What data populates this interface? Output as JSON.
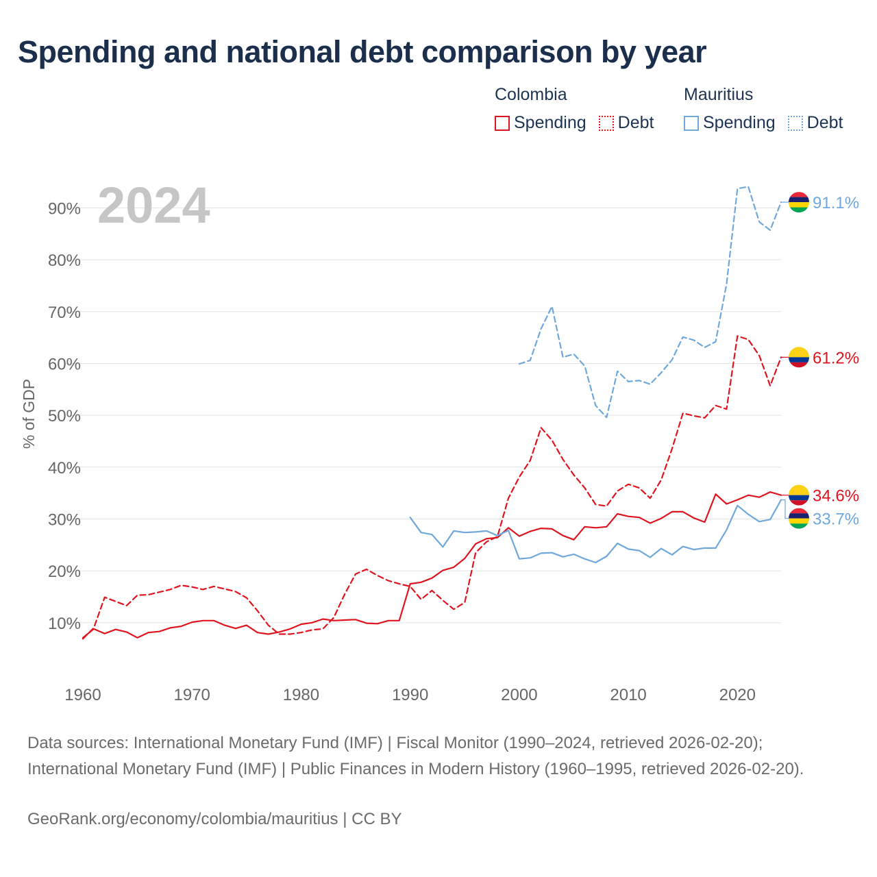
{
  "title": "Spending and national debt comparison by year",
  "legend": {
    "groups": [
      {
        "country": "Colombia",
        "spending_label": "Spending",
        "debt_label": "Debt",
        "color": "#e0141e"
      },
      {
        "country": "Mauritius",
        "spending_label": "Spending",
        "debt_label": "Debt",
        "color": "#6fa8dc"
      }
    ]
  },
  "source_text": "Data sources: International Monetary Fund (IMF) | Fiscal Monitor (1990–2024, retrieved 2026-02-20); International Monetary Fund (IMF) | Public Finances in Modern History (1960–1995, retrieved 2026-02-20).",
  "credit_text": "GeoRank.org/economy/colombia/mauritius | CC BY",
  "chart_data": {
    "type": "line",
    "year_label": "2024",
    "ylabel": "% of GDP",
    "xlim": [
      1960,
      2024
    ],
    "ylim": [
      0,
      95
    ],
    "x_ticks": [
      1960,
      1970,
      1980,
      1990,
      2000,
      2010,
      2020
    ],
    "y_ticks": [
      10,
      20,
      30,
      40,
      50,
      60,
      70,
      80,
      90
    ],
    "y_tick_suffix": "%",
    "series": [
      {
        "name": "Colombia Spending",
        "country": "Colombia",
        "kind": "Spending",
        "color": "#e0141e",
        "dashed": false,
        "end_label": "34.6%",
        "flag": "colombia-flag",
        "start_year": 1960,
        "values": [
          7.1,
          8.8,
          7.9,
          8.7,
          8.2,
          7.1,
          8.1,
          8.3,
          9.0,
          9.3,
          10.1,
          10.4,
          10.4,
          9.5,
          8.9,
          9.5,
          8.1,
          7.8,
          8.2,
          8.8,
          9.7,
          10.0,
          10.7,
          10.4,
          10.5,
          10.6,
          9.9,
          9.8,
          10.4,
          10.4,
          17.5,
          17.8,
          18.6,
          20.1,
          20.7,
          22.4,
          25.2,
          26.2,
          26.4,
          28.3,
          26.7,
          27.6,
          28.2,
          28.1,
          26.8,
          26.0,
          28.5,
          28.3,
          28.5,
          31.0,
          30.5,
          30.3,
          29.2,
          30.1,
          31.4,
          31.4,
          30.2,
          29.4,
          34.8,
          32.9,
          33.7,
          34.6,
          34.2,
          35.2,
          34.6
        ]
      },
      {
        "name": "Colombia Debt",
        "country": "Colombia",
        "kind": "Debt",
        "color": "#e0141e",
        "dashed": true,
        "end_label": "61.2%",
        "flag": "colombia-flag",
        "start_year": 1960,
        "values": [
          6.9,
          9.0,
          14.9,
          14.1,
          13.3,
          15.3,
          15.4,
          15.9,
          16.4,
          17.2,
          16.9,
          16.4,
          17.0,
          16.5,
          16.0,
          14.8,
          12.3,
          9.5,
          7.8,
          7.8,
          8.1,
          8.6,
          8.8,
          11.0,
          15.5,
          19.4,
          20.3,
          19.1,
          18.1,
          17.5,
          17.0,
          14.5,
          16.2,
          14.3,
          12.6,
          13.9,
          23.5,
          25.6,
          26.6,
          34.0,
          38.1,
          41.3,
          47.6,
          45.2,
          41.5,
          38.5,
          36.0,
          32.8,
          32.5,
          35.4,
          36.7,
          36.0,
          34.0,
          37.5,
          43.5,
          50.4,
          49.9,
          49.5,
          51.9,
          51.2,
          65.3,
          64.6,
          61.5,
          55.7,
          61.2
        ]
      },
      {
        "name": "Mauritius Spending",
        "country": "Mauritius",
        "kind": "Spending",
        "color": "#6fa8dc",
        "dashed": false,
        "end_label": "33.7%",
        "flag": "mauritius-flag",
        "start_year": 1990,
        "values": [
          30.3,
          27.4,
          27.0,
          24.6,
          27.7,
          27.4,
          27.5,
          27.7,
          26.8,
          27.8,
          22.3,
          22.5,
          23.4,
          23.5,
          22.7,
          23.2,
          22.3,
          21.6,
          22.8,
          25.3,
          24.2,
          23.9,
          22.6,
          24.3,
          23.1,
          24.7,
          24.1,
          24.4,
          24.4,
          27.9,
          32.6,
          30.9,
          29.5,
          29.9,
          33.7
        ]
      },
      {
        "name": "Mauritius Debt",
        "country": "Mauritius",
        "kind": "Debt",
        "color": "#6fa8dc",
        "dashed": true,
        "end_label": "91.1%",
        "flag": "mauritius-flag",
        "start_year": 2000,
        "values": [
          59.9,
          60.6,
          66.7,
          71.0,
          61.2,
          61.8,
          59.5,
          51.9,
          49.6,
          58.5,
          56.5,
          56.7,
          56.0,
          58.2,
          60.7,
          65.1,
          64.5,
          63.1,
          64.2,
          75.3,
          93.7,
          94.1,
          87.3,
          85.7,
          91.1
        ]
      }
    ]
  }
}
